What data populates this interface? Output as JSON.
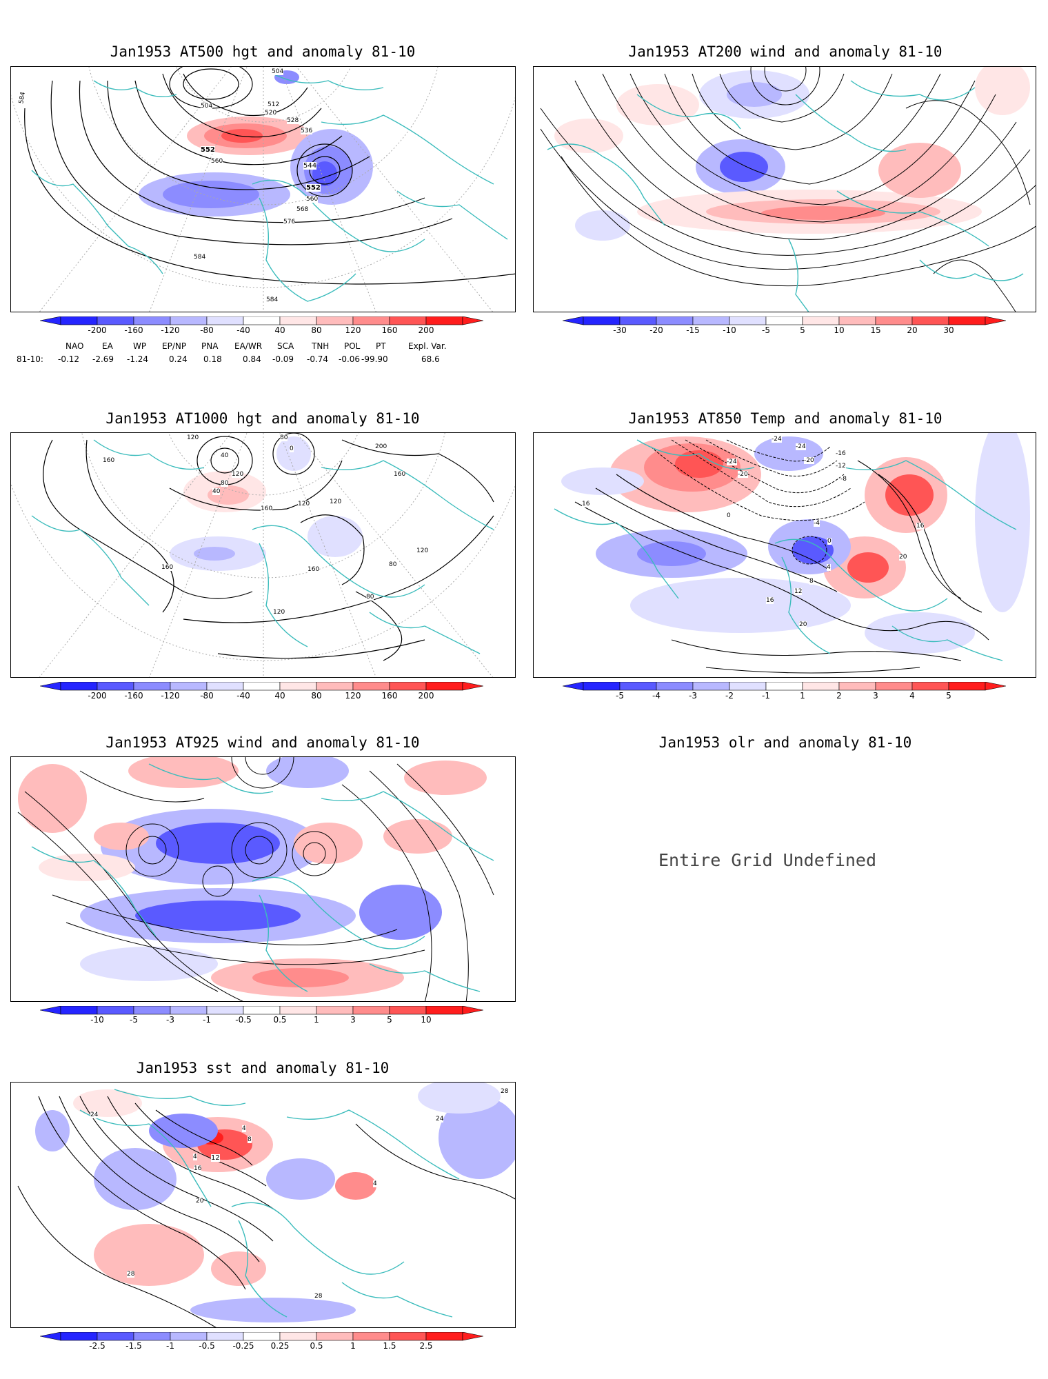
{
  "colors": {
    "coast": "#3bbcbc",
    "contour": "#000000",
    "grid": "#999999",
    "anom_pos": [
      "#ffe6e6",
      "#ffbcbc",
      "#ff8c8c",
      "#ff5555",
      "#ff1d1d"
    ],
    "anom_neg": [
      "#e0e0ff",
      "#b8b8ff",
      "#8c8cff",
      "#5a5aff",
      "#2525ff"
    ]
  },
  "panels": [
    {
      "id": "hgt500",
      "title": "Jan1953 AT500 hgt and anomaly 81-10",
      "contour_labels": [
        "584",
        "504",
        "504",
        "512",
        "520",
        "528",
        "536",
        "552",
        "560",
        "544",
        "552",
        "560",
        "568",
        "576",
        "584",
        "584"
      ],
      "colorbar": [
        "-200",
        "-160",
        "-120",
        "-80",
        "-40",
        "40",
        "80",
        "120",
        "160",
        "200"
      ]
    },
    {
      "id": "wind200",
      "title": "Jan1953 AT200 wind and anomaly 81-10",
      "contour_labels": [],
      "colorbar": [
        "-30",
        "-20",
        "-15",
        "-10",
        "-5",
        "5",
        "10",
        "15",
        "20",
        "30"
      ]
    },
    {
      "id": "hgt1000",
      "title": "Jan1953 AT1000 hgt and anomaly 81-10",
      "contour_labels": [
        "120",
        "80",
        "160",
        "40",
        "0",
        "200",
        "160",
        "120",
        "80",
        "40",
        "160",
        "120",
        "120",
        "160",
        "120",
        "80",
        "80",
        "120",
        "160"
      ],
      "colorbar": [
        "-200",
        "-160",
        "-120",
        "-80",
        "-40",
        "40",
        "80",
        "120",
        "160",
        "200"
      ]
    },
    {
      "id": "temp850",
      "title": "Jan1953 AT850 Temp and anomaly 81-10",
      "contour_labels": [
        "-24",
        "-24",
        "-20",
        "-16",
        "-12",
        "-8",
        "-24",
        "-20",
        "0",
        "16",
        "-4",
        "0",
        "4",
        "8",
        "12",
        "16",
        "20",
        "20",
        "16"
      ],
      "colorbar": [
        "-5",
        "-4",
        "-3",
        "-2",
        "-1",
        "1",
        "2",
        "3",
        "4",
        "5"
      ]
    },
    {
      "id": "wind925",
      "title": "Jan1953 AT925 wind and anomaly 81-10",
      "contour_labels": [],
      "colorbar": [
        "-10",
        "-5",
        "-3",
        "-1",
        "-0.5",
        "0.5",
        "1",
        "3",
        "5",
        "10"
      ]
    },
    {
      "id": "olr",
      "title": "Jan1953 olr and anomaly 81-10",
      "message": "Entire Grid Undefined",
      "contour_labels": [],
      "colorbar": []
    },
    {
      "id": "sst",
      "title": "Jan1953 sst and anomaly 81-10",
      "contour_labels": [
        "24",
        "4",
        "8",
        "4",
        "12",
        "16",
        "20",
        "24",
        "28",
        "28",
        "28",
        "4"
      ],
      "colorbar": [
        "-2.5",
        "-1.5",
        "-1",
        "-0.5",
        "-0.25",
        "0.25",
        "0.5",
        "1",
        "1.5",
        "2.5"
      ]
    }
  ],
  "teleconnections": {
    "names": [
      "NAO",
      "EA",
      "WP",
      "EP/NP",
      "PNA",
      "EA/WR",
      "SCA",
      "TNH",
      "POL",
      "PT",
      "Expl. Var."
    ],
    "row_label": "81-10:",
    "values": [
      "-0.12",
      "-2.69",
      "-1.24",
      "0.24",
      "0.18",
      "0.84",
      "-0.09",
      "-0.74",
      "-0.06",
      "-99.90",
      "68.6"
    ]
  }
}
